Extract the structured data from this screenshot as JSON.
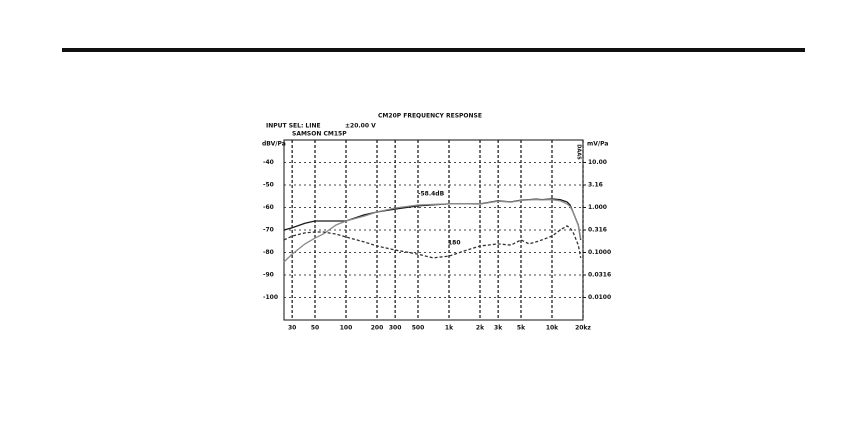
{
  "chart_data": {
    "type": "line",
    "title": "CM20P FREQUENCY RESPONSE",
    "annotations": [
      "INPUT SEL: LINE",
      "±20.00 V",
      "SAMSON CM15P",
      "-58.4dB",
      "180",
      "DAAS"
    ],
    "ylabel": "dBV/Pa",
    "y2label": "mV/Pa",
    "xscale": "log",
    "xlim": [
      25,
      20000
    ],
    "xticks": [
      30,
      50,
      100,
      200,
      300,
      500,
      {
        "value": 1000,
        "label": "1k"
      },
      {
        "value": 2000,
        "label": "2k"
      },
      {
        "value": 3000,
        "label": "3k"
      },
      {
        "value": 5000,
        "label": "5k"
      },
      {
        "value": 10000,
        "label": "10k"
      },
      {
        "value": 20000,
        "label": "20kz"
      }
    ],
    "ylim": [
      -110,
      -30
    ],
    "yticks": [
      -100,
      -90,
      -80,
      -70,
      -60,
      -50,
      -40
    ],
    "y2scale": "log",
    "y2lim": [
      0.00316,
      31.6
    ],
    "y2ticks": [
      {
        "value": 0.01,
        "label": "0.0100"
      },
      0.0316,
      {
        "value": 0.1,
        "label": "0.1000"
      },
      0.316,
      {
        "value": 1,
        "label": "1.000"
      },
      3.16,
      {
        "value": 10,
        "label": "10.00"
      }
    ],
    "grid": true,
    "x": [
      25,
      30,
      40,
      50,
      60,
      80,
      100,
      150,
      200,
      300,
      500,
      700,
      1000,
      1500,
      2000,
      3000,
      4000,
      5000,
      6000,
      7000,
      8000,
      10000,
      12000,
      14000,
      15000,
      16000,
      18000,
      19000
    ],
    "series": [
      {
        "color": "#1a1a1a",
        "dash": false,
        "values": [
          -70,
          -69,
          -67,
          -66,
          -66,
          -66,
          -66,
          -63.3,
          -62,
          -60.7,
          -59.3,
          -58.8,
          -58.4,
          -58.4,
          -58.4,
          -57,
          -57.5,
          -56.7,
          -56.5,
          -56.3,
          -56.5,
          -56.2,
          -56.5,
          -57.5,
          -58.9,
          -62,
          -67.8,
          -74.4
        ]
      },
      {
        "color": "#8a8a8a",
        "dash": false,
        "values": [
          -84.2,
          -80.7,
          -76.2,
          -73.6,
          -71.8,
          -67.8,
          -66,
          -63.8,
          -62,
          -60.2,
          -58.9,
          -58.6,
          -58.4,
          -58.4,
          -58.5,
          -57.2,
          -57.6,
          -56.9,
          -56.6,
          -56.5,
          -56.6,
          -56.5,
          -57,
          -58.4,
          -59.5,
          -62,
          -68,
          -74
        ]
      },
      {
        "color": "#333333",
        "dash": true,
        "values": [
          -74.4,
          -72.7,
          -71.3,
          -70.9,
          -70.9,
          -71.8,
          -73.1,
          -75.3,
          -77.1,
          -78.9,
          -80.7,
          -82.4,
          -81.6,
          -78.9,
          -77.1,
          -76.2,
          -76.7,
          -74.4,
          -76.2,
          -75.3,
          -74.4,
          -72.7,
          -70,
          -68.2,
          -69.1,
          -70.9,
          -76.7,
          -82.4
        ]
      }
    ]
  }
}
